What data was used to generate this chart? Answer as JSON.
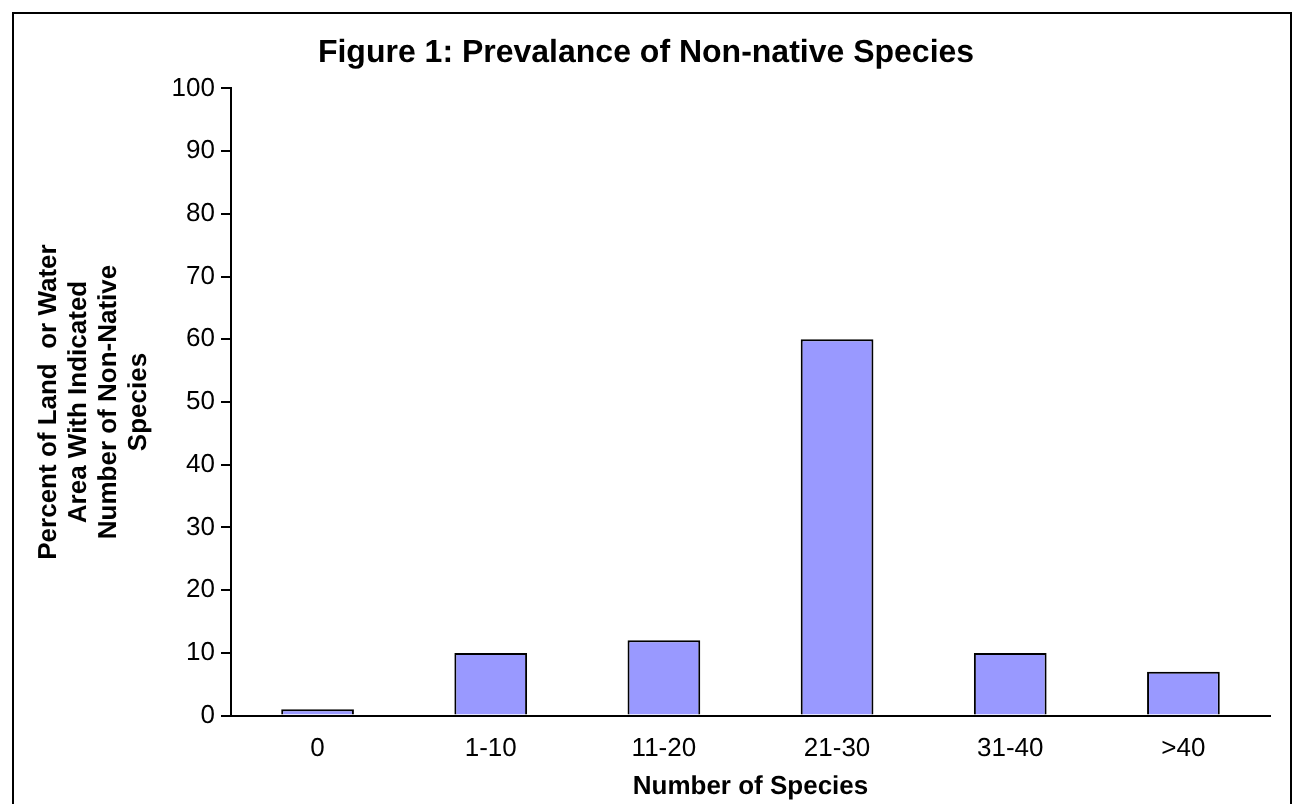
{
  "chart_data": {
    "type": "bar",
    "title": "Figure 1: Prevalance of Non-native Species",
    "xlabel": "Number of Species",
    "ylabel": "Percent of Land  or Water\nArea With Indicated\nNumber of Non-Native\nSpecies",
    "categories": [
      "0",
      "1-10",
      "11-20",
      "21-30",
      "31-40",
      ">40"
    ],
    "values": [
      1,
      10,
      12,
      60,
      10,
      7
    ],
    "color": "#9999ff",
    "ylim": [
      0,
      100
    ],
    "yticks": [
      0,
      10,
      20,
      30,
      40,
      50,
      60,
      70,
      80,
      90,
      100
    ],
    "grid": false,
    "legend": false
  }
}
